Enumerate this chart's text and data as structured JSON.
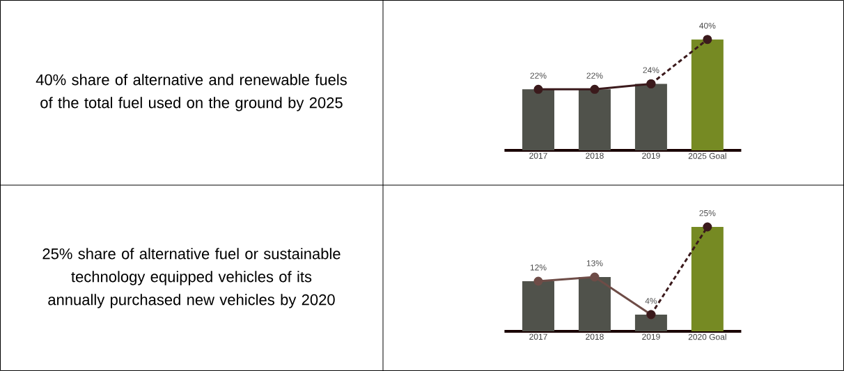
{
  "chart_data": [
    {
      "type": "other",
      "annotations": [
        "40% share of alternative and renewable fuels of the total fuel used on the ground by 2025"
      ]
    },
    {
      "type": "bar",
      "categories": [
        "2017",
        "2018",
        "2019",
        "2025 Goal"
      ],
      "series": [
        {
          "values": [
            22,
            22,
            24,
            40
          ],
          "colors": [
            "#50524b",
            "#50524b",
            "#50524b",
            "#768a23"
          ],
          "value_labels": [
            "22%",
            "22%",
            "24%",
            "40%"
          ]
        },
        {
          "type": "line",
          "color": "#3b1a1c",
          "values": [
            22,
            22,
            24,
            null
          ],
          "marker": "circle",
          "line_style": "solid"
        },
        {
          "type": "line",
          "color": "#3b1a1c",
          "values": [
            null,
            null,
            24,
            40
          ],
          "marker": "circle",
          "line_style": "dashed"
        }
      ]
    },
    {
      "type": "other",
      "annotations": [
        "25% share of alternative fuel or sustainable technology equipped vehicles of its annually purchased new vehicles by 2020"
      ]
    },
    {
      "type": "bar",
      "categories": [
        "2017",
        "2018",
        "2019",
        "2020 Goal"
      ],
      "series": [
        {
          "values": [
            12,
            13,
            4,
            25
          ],
          "colors": [
            "#50524b",
            "#50524b",
            "#50524b",
            "#768a23"
          ],
          "value_labels": [
            "12%",
            "13%",
            "4%",
            "25%"
          ]
        },
        {
          "type": "line",
          "color": "#6e4c47",
          "values": [
            12,
            13,
            4,
            null
          ],
          "marker": "circle",
          "line_style": "solid"
        },
        {
          "type": "line",
          "color": "#3b1a1c",
          "values": [
            null,
            null,
            4,
            25
          ],
          "marker": "circle",
          "line_style": "dashed"
        }
      ]
    }
  ]
}
